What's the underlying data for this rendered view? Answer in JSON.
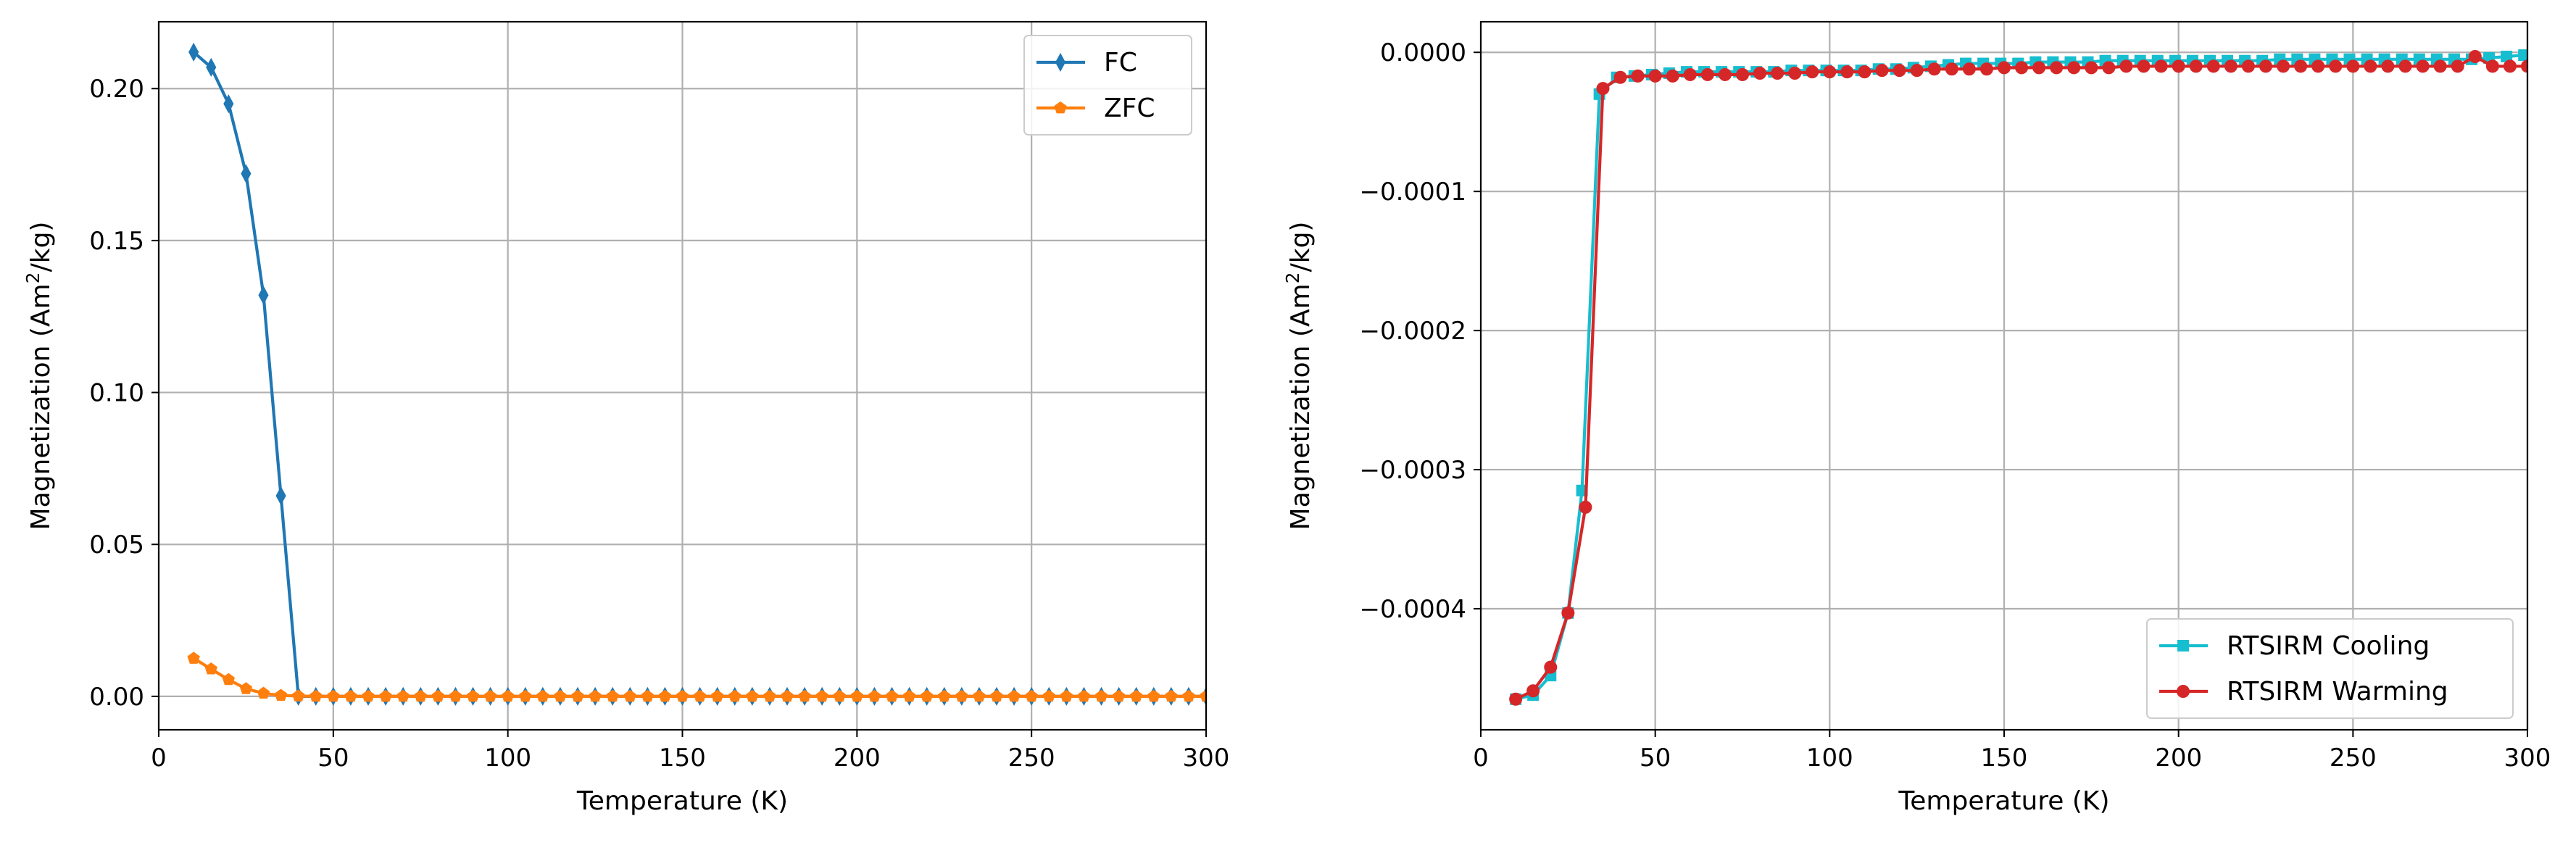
{
  "chart_data": [
    {
      "type": "line",
      "xlabel": "Temperature (K)",
      "ylabel_main": "Magnetization (Am",
      "ylabel_sup": "2",
      "ylabel_tail": "/kg)",
      "xlim": [
        0,
        300
      ],
      "ylim": [
        -0.011,
        0.222
      ],
      "xticks": [
        0,
        50,
        100,
        150,
        200,
        250,
        300
      ],
      "xtick_labels": [
        "0",
        "50",
        "100",
        "150",
        "200",
        "250",
        "300"
      ],
      "yticks": [
        0.0,
        0.05,
        0.1,
        0.15,
        0.2
      ],
      "ytick_labels": [
        "0.00",
        "0.05",
        "0.10",
        "0.15",
        "0.20"
      ],
      "grid": true,
      "legend_position": "top-right",
      "series": [
        {
          "name": "FC",
          "color": "#1f77b4",
          "marker": "thin-diamond",
          "x": [
            10,
            15,
            20,
            25,
            30,
            35,
            40,
            45,
            50,
            55,
            60,
            65,
            70,
            75,
            80,
            85,
            90,
            95,
            100,
            105,
            110,
            115,
            120,
            125,
            130,
            135,
            140,
            145,
            150,
            155,
            160,
            165,
            170,
            175,
            180,
            185,
            190,
            195,
            200,
            205,
            210,
            215,
            220,
            225,
            230,
            235,
            240,
            245,
            250,
            255,
            260,
            265,
            270,
            275,
            280,
            285,
            290,
            295,
            300
          ],
          "y": [
            0.212,
            0.207,
            0.195,
            0.172,
            0.132,
            0.066,
            0.0,
            0.0,
            0.0,
            0.0,
            0.0,
            0.0,
            0.0,
            0.0,
            0.0,
            0.0,
            0.0,
            0.0,
            0.0,
            0.0,
            0.0,
            0.0,
            0.0,
            0.0,
            0.0,
            0.0,
            0.0,
            0.0,
            0.0,
            0.0,
            0.0,
            0.0,
            0.0,
            0.0,
            0.0,
            0.0,
            0.0,
            0.0,
            0.0,
            0.0,
            0.0,
            0.0,
            0.0,
            0.0,
            0.0,
            0.0,
            0.0,
            0.0,
            0.0,
            0.0,
            0.0,
            0.0,
            0.0,
            0.0,
            0.0,
            0.0,
            0.0,
            0.0,
            0.0
          ]
        },
        {
          "name": "ZFC",
          "color": "#ff7f0e",
          "marker": "pentagon",
          "x": [
            10,
            15,
            20,
            25,
            30,
            35,
            40,
            45,
            50,
            55,
            60,
            65,
            70,
            75,
            80,
            85,
            90,
            95,
            100,
            105,
            110,
            115,
            120,
            125,
            130,
            135,
            140,
            145,
            150,
            155,
            160,
            165,
            170,
            175,
            180,
            185,
            190,
            195,
            200,
            205,
            210,
            215,
            220,
            225,
            230,
            235,
            240,
            245,
            250,
            255,
            260,
            265,
            270,
            275,
            280,
            285,
            290,
            295,
            300
          ],
          "y": [
            0.0125,
            0.009,
            0.0055,
            0.0025,
            0.001,
            0.0003,
            0.0001,
            0.0,
            0.0,
            0.0,
            0.0,
            0.0,
            0.0,
            0.0,
            0.0,
            0.0,
            0.0,
            0.0,
            0.0,
            0.0,
            0.0,
            0.0,
            0.0,
            0.0,
            0.0,
            0.0,
            0.0,
            0.0,
            0.0,
            0.0,
            0.0,
            0.0,
            0.0,
            0.0,
            0.0,
            0.0,
            0.0,
            0.0,
            0.0,
            0.0,
            0.0,
            0.0,
            0.0,
            0.0,
            0.0,
            0.0,
            0.0,
            0.0,
            0.0,
            0.0,
            0.0,
            0.0,
            0.0,
            0.0,
            0.0,
            0.0,
            0.0,
            0.0,
            0.0
          ]
        }
      ]
    },
    {
      "type": "line",
      "xlabel": "Temperature (K)",
      "ylabel_main": "Magnetization (Am",
      "ylabel_sup": "2",
      "ylabel_tail": "/kg)",
      "xlim": [
        0,
        300
      ],
      "ylim": [
        -0.000487,
        2.2e-05
      ],
      "xticks": [
        0,
        50,
        100,
        150,
        200,
        250,
        300
      ],
      "xtick_labels": [
        "0",
        "50",
        "100",
        "150",
        "200",
        "250",
        "300"
      ],
      "yticks": [
        0.0,
        -0.0001,
        -0.0002,
        -0.0003,
        -0.0004
      ],
      "ytick_labels": [
        "0.0000",
        "−0.0001",
        "−0.0002",
        "−0.0003",
        "−0.0004"
      ],
      "grid": true,
      "legend_position": "bottom-right",
      "series": [
        {
          "name": "RTSIRM Cooling",
          "color": "#17becf",
          "marker": "square",
          "x": [
            10,
            15,
            20,
            25,
            29,
            34,
            39,
            44,
            49,
            54,
            59,
            64,
            69,
            74,
            79,
            84,
            89,
            94,
            99,
            104,
            109,
            114,
            119,
            124,
            129,
            134,
            139,
            144,
            149,
            154,
            159,
            164,
            169,
            174,
            179,
            184,
            189,
            194,
            199,
            204,
            209,
            214,
            219,
            224,
            229,
            234,
            239,
            244,
            249,
            254,
            259,
            264,
            269,
            274,
            279,
            284,
            289,
            294,
            299
          ],
          "y": [
            -0.000465,
            -0.000462,
            -0.000448,
            -0.000403,
            -0.000315,
            -3e-05,
            -1.8e-05,
            -1.7e-05,
            -1.6e-05,
            -1.5e-05,
            -1.4e-05,
            -1.4e-05,
            -1.4e-05,
            -1.4e-05,
            -1.4e-05,
            -1.4e-05,
            -1.3e-05,
            -1.3e-05,
            -1.3e-05,
            -1.3e-05,
            -1.3e-05,
            -1.2e-05,
            -1.2e-05,
            -1.1e-05,
            -1e-05,
            -9e-06,
            -8e-06,
            -8e-06,
            -8e-06,
            -8e-06,
            -7e-06,
            -7e-06,
            -7e-06,
            -7e-06,
            -6e-06,
            -6e-06,
            -6e-06,
            -6e-06,
            -6e-06,
            -6e-06,
            -6e-06,
            -6e-06,
            -6e-06,
            -6e-06,
            -5e-06,
            -5e-06,
            -5e-06,
            -5e-06,
            -5e-06,
            -5e-06,
            -5e-06,
            -5e-06,
            -5e-06,
            -5e-06,
            -5e-06,
            -5e-06,
            -4e-06,
            -3e-06,
            -2e-06
          ]
        },
        {
          "name": "RTSIRM Warming",
          "color": "#d62728",
          "marker": "circle",
          "x": [
            10,
            15,
            20,
            25,
            30,
            35,
            40,
            45,
            50,
            55,
            60,
            65,
            70,
            75,
            80,
            85,
            90,
            95,
            100,
            105,
            110,
            115,
            120,
            125,
            130,
            135,
            140,
            145,
            150,
            155,
            160,
            165,
            170,
            175,
            180,
            185,
            190,
            195,
            200,
            205,
            210,
            215,
            220,
            225,
            230,
            235,
            240,
            245,
            250,
            255,
            260,
            265,
            270,
            275,
            280,
            285,
            290,
            295,
            300
          ],
          "y": [
            -0.000465,
            -0.000459,
            -0.000442,
            -0.000403,
            -0.000327,
            -2.6e-05,
            -1.8e-05,
            -1.7e-05,
            -1.7e-05,
            -1.7e-05,
            -1.6e-05,
            -1.6e-05,
            -1.6e-05,
            -1.6e-05,
            -1.5e-05,
            -1.5e-05,
            -1.5e-05,
            -1.4e-05,
            -1.4e-05,
            -1.4e-05,
            -1.4e-05,
            -1.3e-05,
            -1.3e-05,
            -1.3e-05,
            -1.2e-05,
            -1.2e-05,
            -1.2e-05,
            -1.2e-05,
            -1.1e-05,
            -1.1e-05,
            -1.1e-05,
            -1.1e-05,
            -1.1e-05,
            -1.1e-05,
            -1.1e-05,
            -1e-05,
            -1e-05,
            -1e-05,
            -1e-05,
            -1e-05,
            -1e-05,
            -1e-05,
            -1e-05,
            -1e-05,
            -1e-05,
            -1e-05,
            -1e-05,
            -1e-05,
            -1e-05,
            -1e-05,
            -1e-05,
            -1e-05,
            -1e-05,
            -1e-05,
            -1e-05,
            -3e-06,
            -1e-05,
            -1e-05,
            -1e-05
          ]
        }
      ]
    }
  ]
}
